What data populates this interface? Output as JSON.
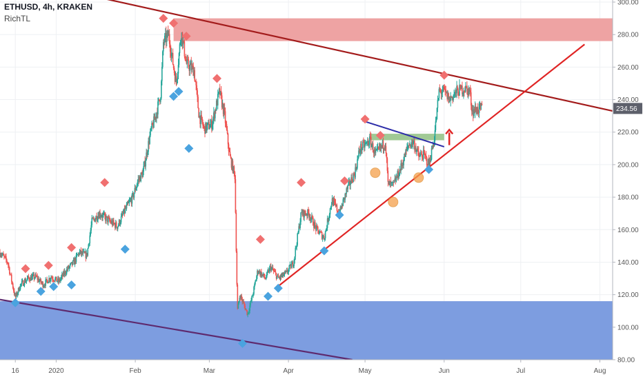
{
  "header": {
    "title": "ETHUSD, 4h, KRAKEN",
    "indicator": "RichTL"
  },
  "colors": {
    "up": "#26a69a",
    "down": "#ef5350",
    "resistance_zone": "#eea3a3",
    "support_zone": "#7d9de0",
    "supply_box": "#8fbf82",
    "downtrend": "#a31b1b",
    "uptrend": "#e02424",
    "lower_channel": "#5e2a6e",
    "mini_trend": "#2c2ca8",
    "signal_sell": "#f07070",
    "signal_buy": "#4aa3df",
    "circle": "#f5a04a",
    "price_tag": "#5d606b"
  },
  "chart_data": {
    "type": "candlestick",
    "symbol": "ETHUSD",
    "interval": "4h",
    "exchange": "KRAKEN",
    "y_axis": {
      "min": 80,
      "max": 300,
      "ticks": [
        80,
        100,
        120,
        140,
        160,
        180,
        200,
        220,
        240,
        260,
        280,
        300
      ],
      "tick_labels": [
        "80.00",
        "100.00",
        "120.00",
        "140.00",
        "160.00",
        "180.00",
        "200.00",
        "220.00",
        "240.00",
        "260.00",
        "280.00",
        "300.00"
      ]
    },
    "x_axis": {
      "start_date": "2019-12-10",
      "end_date": "2020-08-06",
      "ticks": [
        {
          "date": "2019-12-16",
          "label": "16"
        },
        {
          "date": "2020-01-01",
          "label": "2020"
        },
        {
          "date": "2020-02-01",
          "label": "Feb"
        },
        {
          "date": "2020-03-01",
          "label": "Mar"
        },
        {
          "date": "2020-04-01",
          "label": "Apr"
        },
        {
          "date": "2020-05-01",
          "label": "May"
        },
        {
          "date": "2020-06-01",
          "label": "Jun"
        },
        {
          "date": "2020-07-01",
          "label": "Jul"
        },
        {
          "date": "2020-08-01",
          "label": "Aug"
        }
      ]
    },
    "last_price": 234.56,
    "last_price_label": "234.56",
    "price_path": [
      [
        "2019-12-10",
        146
      ],
      [
        "2019-12-13",
        140
      ],
      [
        "2019-12-16",
        118
      ],
      [
        "2019-12-18",
        126
      ],
      [
        "2019-12-21",
        130
      ],
      [
        "2019-12-24",
        131
      ],
      [
        "2019-12-27",
        126
      ],
      [
        "2019-12-30",
        131
      ],
      [
        "2020-01-02",
        128
      ],
      [
        "2020-01-05",
        135
      ],
      [
        "2020-01-08",
        140
      ],
      [
        "2020-01-10",
        146
      ],
      [
        "2020-01-13",
        144
      ],
      [
        "2020-01-15",
        165
      ],
      [
        "2020-01-18",
        170
      ],
      [
        "2020-01-22",
        165
      ],
      [
        "2020-01-25",
        162
      ],
      [
        "2020-01-28",
        172
      ],
      [
        "2020-01-31",
        180
      ],
      [
        "2020-02-02",
        190
      ],
      [
        "2020-02-04",
        195
      ],
      [
        "2020-02-07",
        220
      ],
      [
        "2020-02-09",
        230
      ],
      [
        "2020-02-11",
        244
      ],
      [
        "2020-02-12",
        275
      ],
      [
        "2020-02-14",
        280
      ],
      [
        "2020-02-16",
        260
      ],
      [
        "2020-02-17",
        250
      ],
      [
        "2020-02-19",
        282
      ],
      [
        "2020-02-21",
        262
      ],
      [
        "2020-02-24",
        258
      ],
      [
        "2020-02-26",
        230
      ],
      [
        "2020-02-28",
        222
      ],
      [
        "2020-03-02",
        225
      ],
      [
        "2020-03-05",
        245
      ],
      [
        "2020-03-07",
        230
      ],
      [
        "2020-03-09",
        205
      ],
      [
        "2020-03-11",
        193
      ],
      [
        "2020-03-12",
        110
      ],
      [
        "2020-03-13",
        120
      ],
      [
        "2020-03-16",
        108
      ],
      [
        "2020-03-18",
        120
      ],
      [
        "2020-03-20",
        135
      ],
      [
        "2020-03-23",
        130
      ],
      [
        "2020-03-25",
        137
      ],
      [
        "2020-03-28",
        130
      ],
      [
        "2020-03-31",
        133
      ],
      [
        "2020-04-03",
        140
      ],
      [
        "2020-04-06",
        170
      ],
      [
        "2020-04-09",
        170
      ],
      [
        "2020-04-12",
        160
      ],
      [
        "2020-04-15",
        155
      ],
      [
        "2020-04-18",
        178
      ],
      [
        "2020-04-21",
        170
      ],
      [
        "2020-04-24",
        185
      ],
      [
        "2020-04-27",
        195
      ],
      [
        "2020-04-29",
        210
      ],
      [
        "2020-05-01",
        212
      ],
      [
        "2020-05-03",
        215
      ],
      [
        "2020-05-05",
        206
      ],
      [
        "2020-05-07",
        210
      ],
      [
        "2020-05-09",
        214
      ],
      [
        "2020-05-10",
        188
      ],
      [
        "2020-05-12",
        187
      ],
      [
        "2020-05-15",
        198
      ],
      [
        "2020-05-18",
        212
      ],
      [
        "2020-05-20",
        214
      ],
      [
        "2020-05-22",
        205
      ],
      [
        "2020-05-24",
        206
      ],
      [
        "2020-05-26",
        200
      ],
      [
        "2020-05-28",
        215
      ],
      [
        "2020-05-30",
        245
      ],
      [
        "2020-06-01",
        245
      ],
      [
        "2020-06-03",
        240
      ],
      [
        "2020-06-06",
        245
      ],
      [
        "2020-06-09",
        247
      ],
      [
        "2020-06-11",
        245
      ],
      [
        "2020-06-12",
        233
      ],
      [
        "2020-06-14",
        234
      ],
      [
        "2020-06-16",
        234.56
      ]
    ],
    "zones": [
      {
        "name": "resistance",
        "from_date": "2020-02-16",
        "to_date": "2020-08-06",
        "y_low": 276,
        "y_high": 290
      },
      {
        "name": "support",
        "from_date": "2019-12-10",
        "to_date": "2020-08-06",
        "y_low": 80,
        "y_high": 116
      },
      {
        "name": "supply",
        "from_date": "2020-05-03",
        "to_date": "2020-06-01",
        "y_low": 215,
        "y_high": 219
      }
    ],
    "trendlines": [
      {
        "name": "downtrend",
        "from": [
          "2019-12-31",
          309
        ],
        "to": [
          "2020-08-06",
          233
        ]
      },
      {
        "name": "uptrend",
        "from": [
          "2020-03-27",
          124
        ],
        "to": [
          "2020-07-26",
          274
        ]
      },
      {
        "name": "lower-channel",
        "from": [
          "2019-12-10",
          117
        ],
        "to": [
          "2020-04-26",
          80
        ]
      },
      {
        "name": "mini-downtrend",
        "from": [
          "2020-04-30",
          227
        ],
        "to": [
          "2020-06-01",
          211
        ]
      }
    ],
    "sell_signals": [
      [
        "2019-12-20",
        136
      ],
      [
        "2019-12-29",
        138
      ],
      [
        "2020-01-07",
        149
      ],
      [
        "2020-01-20",
        189
      ],
      [
        "2020-02-12",
        290
      ],
      [
        "2020-02-16",
        287
      ],
      [
        "2020-02-21",
        279
      ],
      [
        "2020-03-04",
        253
      ],
      [
        "2020-03-21",
        154
      ],
      [
        "2020-04-06",
        189
      ],
      [
        "2020-04-23",
        190
      ],
      [
        "2020-05-01",
        228
      ],
      [
        "2020-05-07",
        218
      ],
      [
        "2020-06-01",
        255
      ]
    ],
    "buy_signals": [
      [
        "2019-12-16",
        115
      ],
      [
        "2019-12-26",
        122
      ],
      [
        "2019-12-31",
        125
      ],
      [
        "2020-01-07",
        126
      ],
      [
        "2020-01-28",
        148
      ],
      [
        "2020-02-16",
        242
      ],
      [
        "2020-02-18",
        245
      ],
      [
        "2020-02-22",
        210
      ],
      [
        "2020-03-14",
        90
      ],
      [
        "2020-03-24",
        119
      ],
      [
        "2020-03-28",
        124
      ],
      [
        "2020-04-15",
        147
      ],
      [
        "2020-04-21",
        169
      ],
      [
        "2020-05-26",
        197
      ]
    ],
    "circled_lows": [
      [
        "2020-05-05",
        195
      ],
      [
        "2020-05-12",
        177
      ],
      [
        "2020-05-22",
        192
      ]
    ],
    "arrow": {
      "date": "2020-06-03",
      "y_from": 212,
      "y_to": 221
    }
  }
}
